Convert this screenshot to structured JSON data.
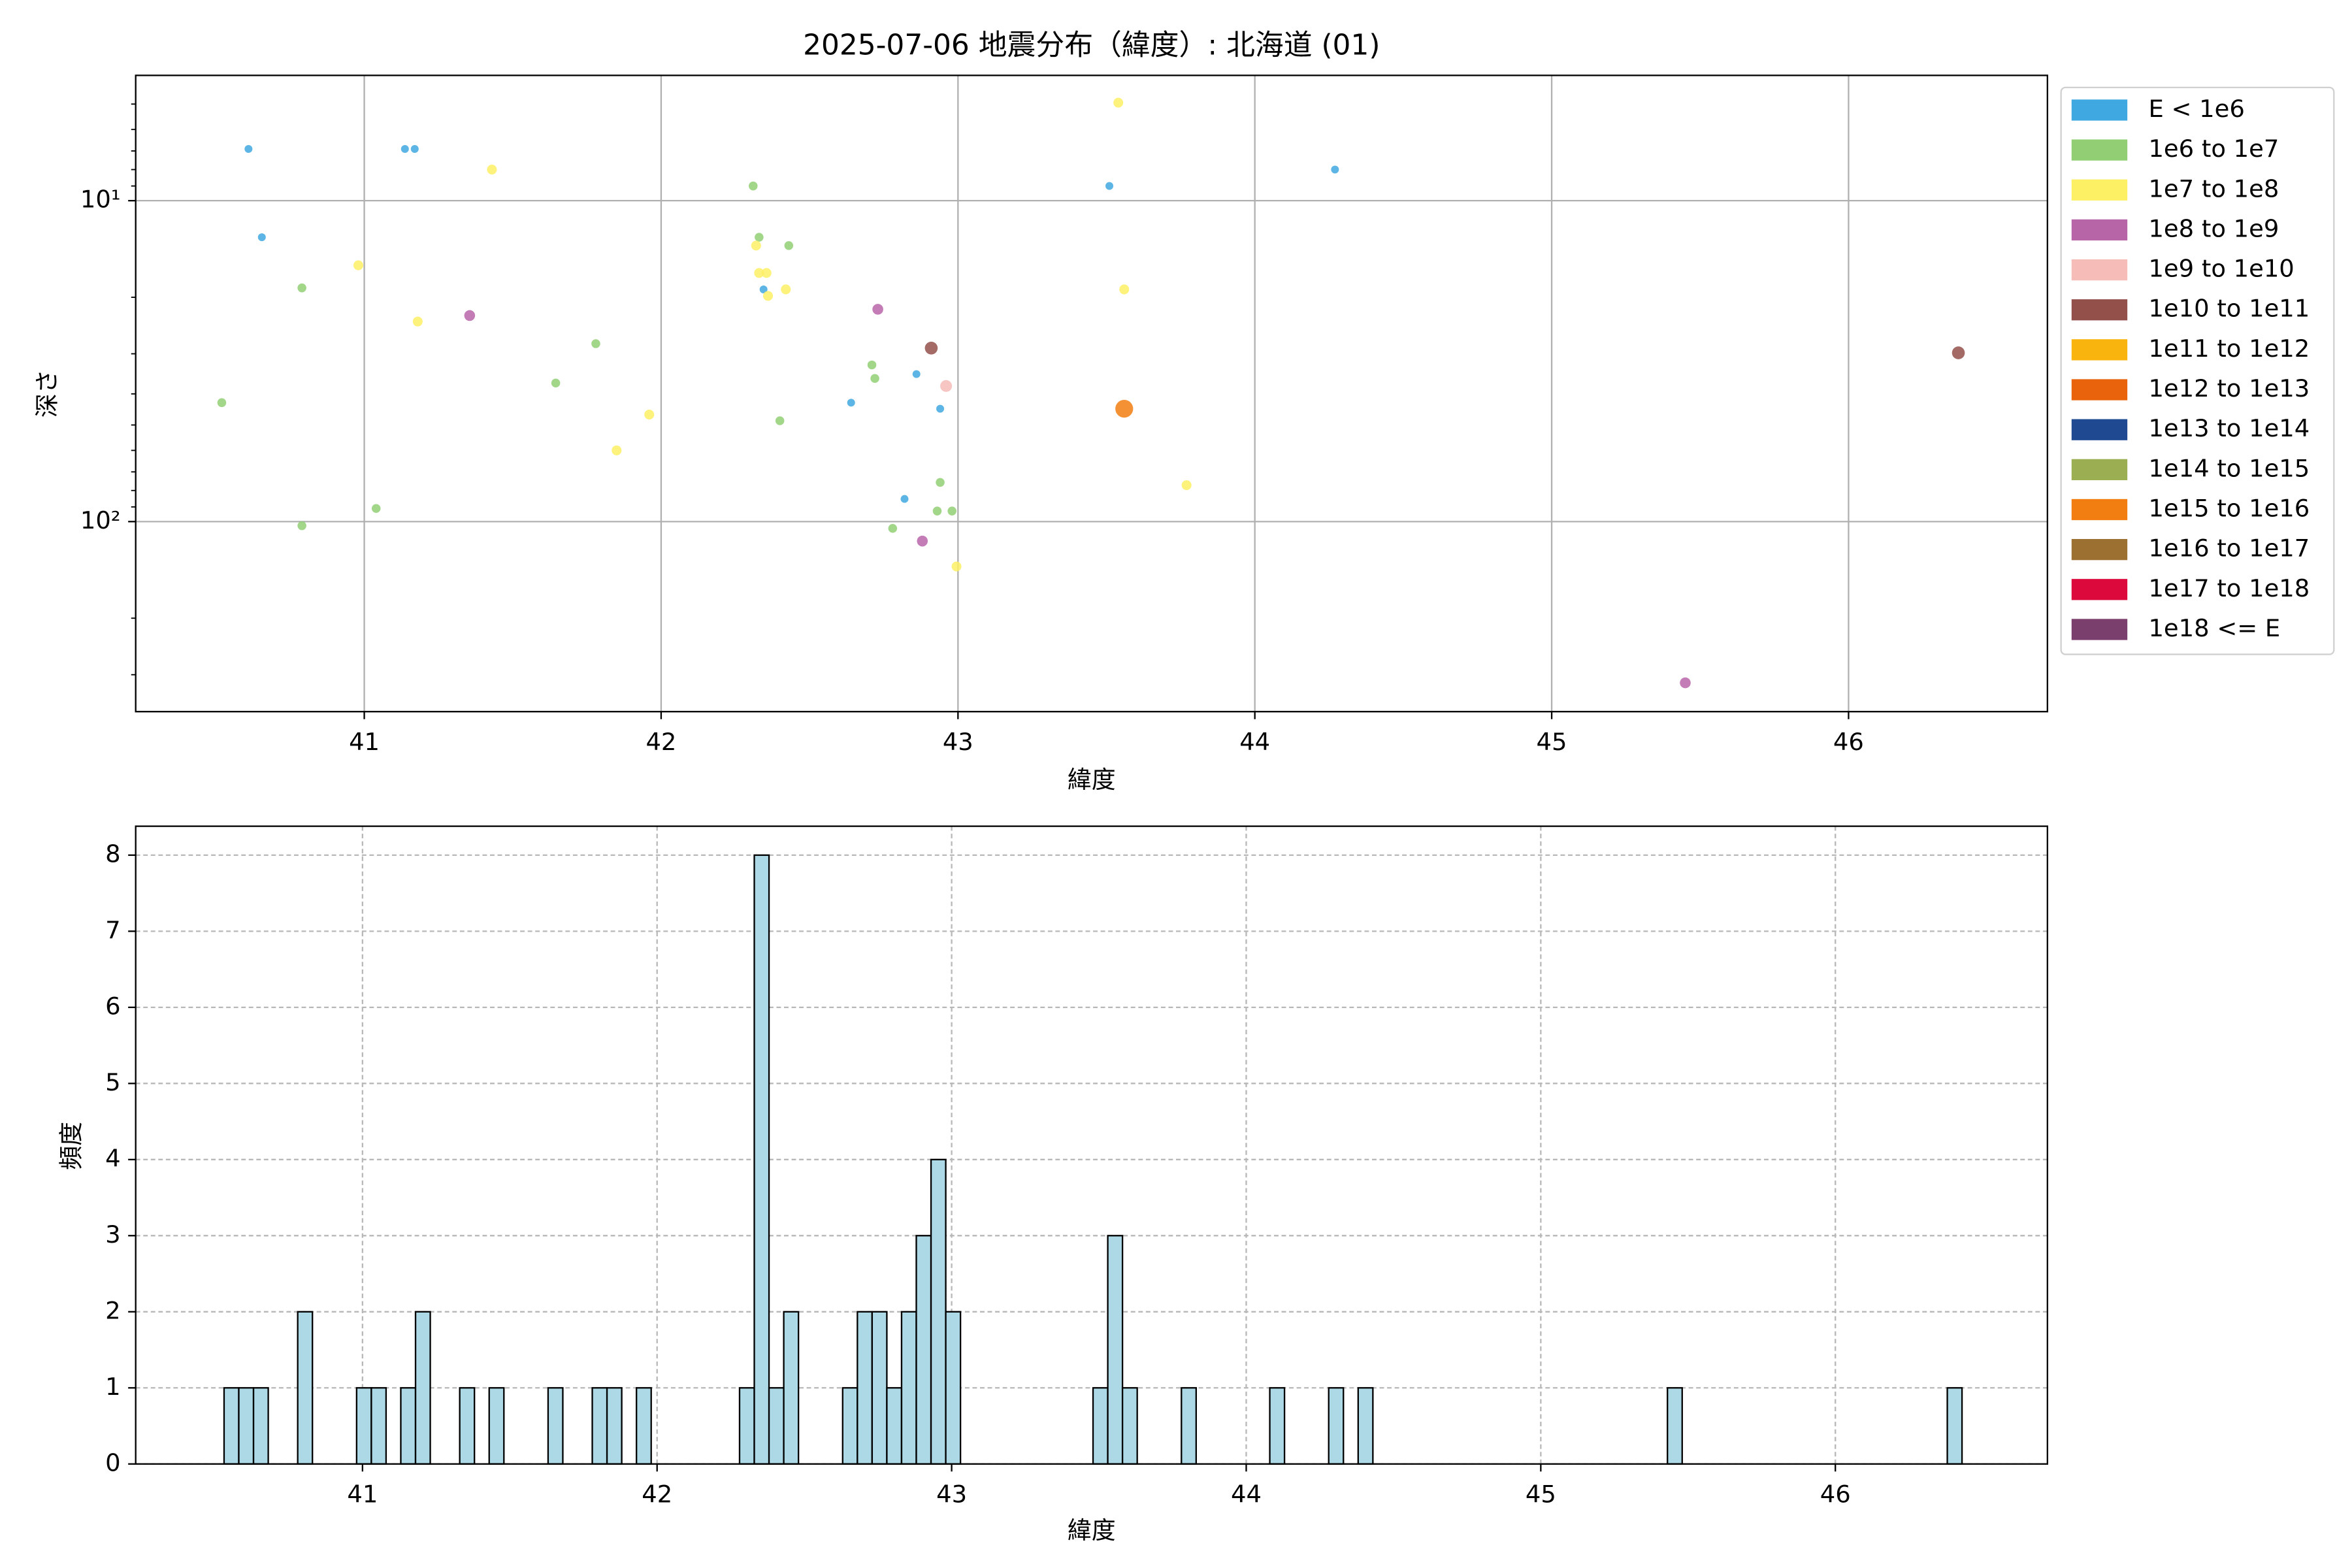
{
  "chart_data": [
    {
      "type": "scatter",
      "title": "2025-07-06 地震分布（緯度）: 北海道 (01)",
      "xlabel": "緯度",
      "ylabel": "深さ",
      "xlim": [
        40.23,
        46.67
      ],
      "xticks": [
        41,
        42,
        43,
        44,
        45,
        46
      ],
      "ylim": [
        4.07,
        391
      ],
      "log_y": true,
      "invert_y": true,
      "yticks": [
        {
          "value": 10,
          "label": "10¹"
        },
        {
          "value": 100,
          "label": "10²"
        }
      ],
      "yminorticks": [
        5,
        6,
        7,
        8,
        9,
        20,
        30,
        40,
        50,
        60,
        70,
        80,
        90,
        200,
        300
      ],
      "grid": true,
      "legend": "outside right",
      "series": [
        {
          "name": "E < 1e6",
          "color": "#3fa8e0",
          "x": [
            40.61,
            40.655,
            41.137,
            41.17,
            42.82,
            42.86,
            42.64,
            42.94,
            43.51,
            44.27,
            42.345
          ],
          "values": [
            6.9,
            13.0,
            6.9,
            6.9,
            85,
            34.7,
            42.6,
            44.5,
            9.0,
            8.0,
            18.9
          ]
        },
        {
          "name": "1e6 to 1e7",
          "color": "#92cf74",
          "x": [
            40.52,
            40.79,
            40.79,
            41.04,
            41.645,
            41.78,
            42.31,
            42.33,
            42.43,
            42.4,
            42.71,
            42.72,
            42.78,
            42.94,
            42.93,
            42.98
          ],
          "values": [
            42.6,
            18.7,
            103,
            91,
            37,
            27.9,
            9.0,
            13.0,
            13.8,
            48.5,
            32.5,
            35.8,
            105,
            75.5,
            92.7,
            92.7
          ]
        },
        {
          "name": "1e7 to 1e8",
          "color": "#fdf065",
          "x": [
            40.98,
            41.18,
            41.43,
            41.85,
            41.96,
            42.32,
            42.33,
            42.355,
            42.36,
            42.42,
            42.995,
            43.54,
            43.56,
            43.77
          ],
          "values": [
            15.9,
            23.8,
            8.0,
            60,
            46.4,
            13.8,
            16.8,
            16.8,
            19.8,
            18.9,
            138,
            4.95,
            18.9,
            77
          ]
        },
        {
          "name": "1e8 to 1e9",
          "color": "#b865a8",
          "x": [
            41.355,
            42.73,
            42.88,
            45.45
          ],
          "values": [
            22.8,
            21.8,
            115,
            318
          ]
        },
        {
          "name": "1e9 to 1e10",
          "color": "#f6bcb8",
          "x": [
            42.96
          ],
          "values": [
            37.8
          ]
        },
        {
          "name": "1e10 to 1e11",
          "color": "#93504b",
          "x": [
            42.91,
            46.37
          ],
          "values": [
            28.8,
            29.8
          ]
        },
        {
          "name": "1e11 to 1e12",
          "color": "#f9b40e",
          "x": [],
          "values": []
        },
        {
          "name": "1e12 to 1e13",
          "color": "#e8630c",
          "x": [],
          "values": []
        },
        {
          "name": "1e13 to 1e14",
          "color": "#1f4a91",
          "x": [],
          "values": []
        },
        {
          "name": "1e14 to 1e15",
          "color": "#9cae52",
          "x": [],
          "values": []
        },
        {
          "name": "1e15 to 1e16",
          "color": "#f27e12",
          "x": [
            43.56
          ],
          "values": [
            44.5
          ]
        },
        {
          "name": "1e16 to 1e17",
          "color": "#9b7030",
          "x": [],
          "values": []
        },
        {
          "name": "1e17 to 1e18",
          "color": "#dc0a3c",
          "x": [],
          "values": []
        },
        {
          "name": "1e18 <= E",
          "color": "#7b3f6e",
          "x": [],
          "values": []
        }
      ]
    },
    {
      "type": "histogram",
      "xlabel": "緯度",
      "ylabel": "頻度",
      "xlim": [
        40.23,
        46.72
      ],
      "xticks": [
        41,
        42,
        43,
        44,
        45,
        46
      ],
      "ylim": [
        0,
        8.38
      ],
      "yticks": [
        0,
        1,
        2,
        3,
        4,
        5,
        6,
        7,
        8
      ],
      "grid": "dashed",
      "color": "#add8e6",
      "edgecolor": "#000000",
      "bins": [
        40.53,
        40.58,
        40.63,
        40.68,
        40.73,
        40.78,
        40.83,
        40.88,
        40.93,
        40.98,
        41.03,
        41.08,
        41.13,
        41.18,
        41.23,
        41.28,
        41.33,
        41.38,
        41.43,
        41.48,
        41.53,
        41.58,
        41.63,
        41.68,
        41.73,
        41.78,
        41.83,
        41.88,
        41.93,
        41.98,
        42.03,
        42.08,
        42.13,
        42.18,
        42.23,
        42.28,
        42.33,
        42.38,
        42.43,
        42.48,
        42.53,
        42.58,
        42.63,
        42.68,
        42.73,
        42.78,
        42.83,
        42.88,
        42.93,
        42.98,
        43.03,
        43.08,
        43.13,
        43.18,
        43.23,
        43.28,
        43.33,
        43.38,
        43.43,
        43.48,
        43.53,
        43.58,
        43.63,
        43.68,
        43.73,
        43.78,
        43.83,
        43.88,
        43.93,
        43.98,
        44.03,
        44.08,
        44.13,
        44.18,
        44.23,
        44.28,
        44.33,
        44.38,
        44.43,
        44.48,
        44.53,
        44.58,
        44.63,
        44.68,
        44.73,
        44.78,
        44.83,
        44.88,
        44.93,
        44.98,
        45.03,
        45.08,
        45.13,
        45.18,
        45.23,
        45.28,
        45.33,
        45.38,
        45.43,
        45.48,
        45.53,
        45.58,
        45.63,
        45.68,
        45.73,
        45.78,
        45.83,
        45.88,
        45.93,
        45.98,
        46.03,
        46.08,
        46.13,
        46.18,
        46.23,
        46.28,
        46.33,
        46.38,
        46.43
      ],
      "counts": [
        1,
        1,
        1,
        0,
        0,
        2,
        0,
        0,
        0,
        1,
        1,
        0,
        1,
        2,
        0,
        0,
        1,
        0,
        1,
        0,
        0,
        0,
        1,
        0,
        0,
        1,
        1,
        0,
        1,
        0,
        0,
        0,
        0,
        0,
        0,
        1,
        8,
        1,
        2,
        0,
        0,
        0,
        1,
        2,
        2,
        1,
        2,
        3,
        4,
        2,
        0,
        0,
        0,
        0,
        0,
        0,
        0,
        0,
        0,
        1,
        3,
        1,
        0,
        0,
        0,
        1,
        0,
        0,
        0,
        0,
        0,
        1,
        0,
        0,
        0,
        1,
        0,
        1,
        0,
        0,
        0,
        0,
        0,
        0,
        0,
        0,
        0,
        0,
        0,
        0,
        0,
        0,
        0,
        0,
        0,
        0,
        0,
        0,
        1,
        0,
        0,
        0,
        0,
        0,
        0,
        0,
        0,
        0,
        0,
        0,
        0,
        0,
        0,
        0,
        0,
        0,
        0,
        1
      ]
    }
  ]
}
